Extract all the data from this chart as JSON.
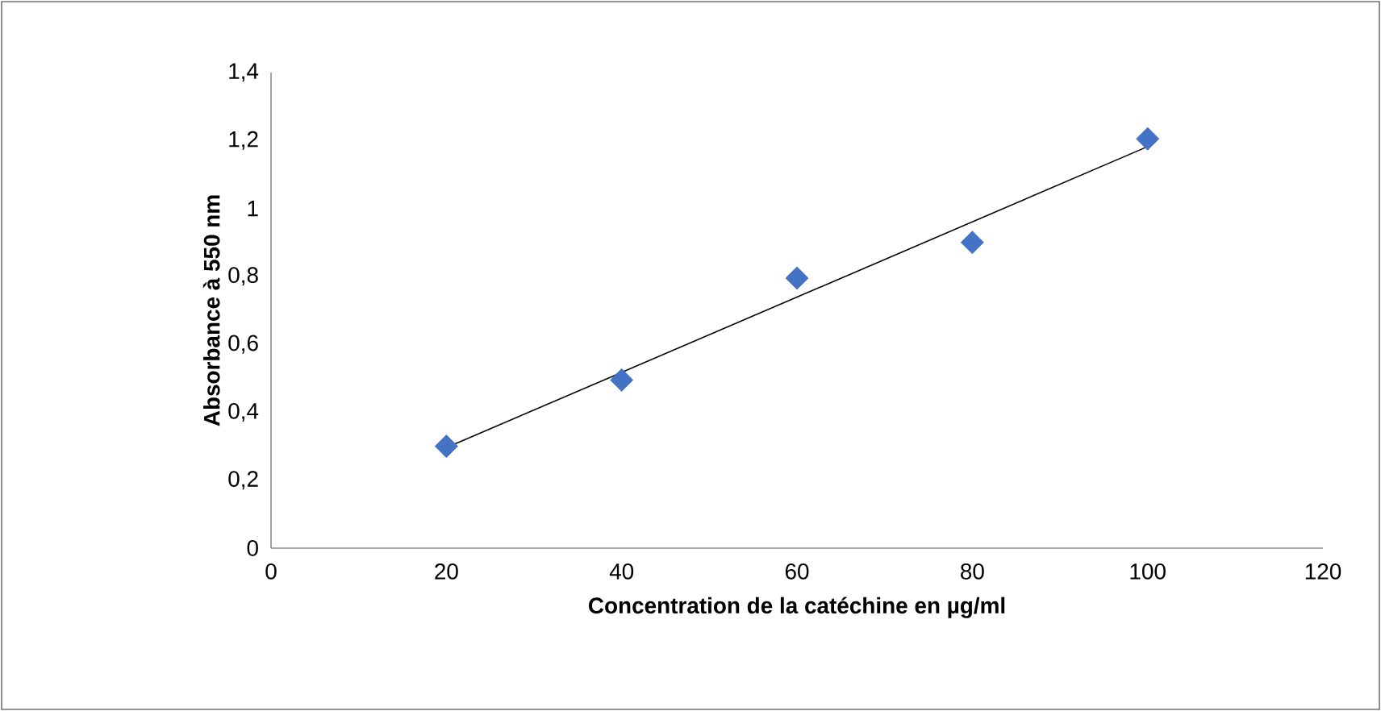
{
  "chart_data": {
    "type": "scatter",
    "xlabel": "Concentration de la catéchine en µg/ml",
    "ylabel": "Absorbance à 550 nm",
    "series": [
      {
        "type": "scatter",
        "color": "#4472c4",
        "marker": "diamond",
        "x": [
          20,
          40,
          60,
          80,
          100
        ],
        "values": [
          0.3,
          0.495,
          0.795,
          0.9,
          1.205
        ]
      },
      {
        "type": "line",
        "color": "#000000",
        "marker": "none",
        "line_style": "solid",
        "x": [
          20,
          100
        ],
        "values": [
          0.296,
          1.182
        ]
      }
    ],
    "xlim": [
      0,
      120
    ],
    "xticks": [
      0,
      20,
      40,
      60,
      80,
      100,
      120
    ],
    "ylim": [
      0,
      1.4
    ],
    "yticks": [
      0,
      {
        "value": 0.2,
        "label": "0,2"
      },
      {
        "value": 0.4,
        "label": "0,4"
      },
      {
        "value": 0.6,
        "label": "0,6"
      },
      {
        "value": 0.8,
        "label": "0,8"
      },
      1,
      {
        "value": 1.2,
        "label": "1,2"
      },
      {
        "value": 1.4,
        "label": "1,4"
      }
    ],
    "grid": false
  }
}
